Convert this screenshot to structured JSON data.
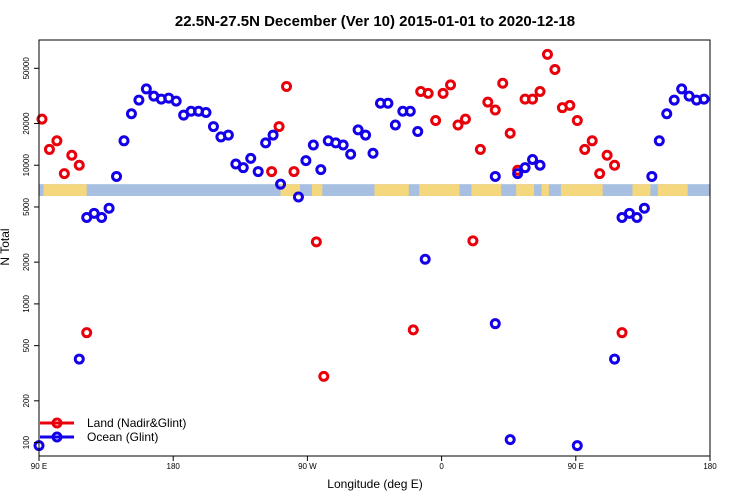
{
  "chart_data": {
    "type": "scatter",
    "title": "22.5N-27.5N December (Ver 10)   2015-01-01 to 2020-12-18",
    "xlabel": "Longitude (deg E)",
    "ylabel": "N Total",
    "y_scale": "log",
    "ylim": [
      80,
      80000
    ],
    "xlim_deg_east_unwrapped": [
      90,
      540
    ],
    "x_ticks": [
      {
        "value": 90,
        "label": "90 E"
      },
      {
        "value": 180,
        "label": "180"
      },
      {
        "value": 270,
        "label": "90 W"
      },
      {
        "value": 360,
        "label": "0"
      },
      {
        "value": 450,
        "label": "90 E"
      },
      {
        "value": 540,
        "label": "180"
      }
    ],
    "y_ticks": [
      {
        "value": 100,
        "label": "100"
      },
      {
        "value": 200,
        "label": "200"
      },
      {
        "value": 500,
        "label": "500"
      },
      {
        "value": 1000,
        "label": "1000"
      },
      {
        "value": 2000,
        "label": "2000"
      },
      {
        "value": 5000,
        "label": "5000"
      },
      {
        "value": 10000,
        "label": "10000"
      },
      {
        "value": 20000,
        "label": "20000"
      },
      {
        "value": 50000,
        "label": "50000"
      }
    ],
    "legend": {
      "position": "bottom-left"
    },
    "map_strip": {
      "y_top": 7300,
      "y_bottom": 6000,
      "ocean_color": "#a7bfe0",
      "land_color": "#f5d77e",
      "land_ranges_deg_east": [
        [
          93,
          122
        ],
        [
          252,
          265
        ],
        [
          273,
          280
        ],
        [
          315,
          338
        ],
        [
          345,
          372
        ],
        [
          380,
          400
        ],
        [
          410,
          422
        ],
        [
          427,
          432
        ],
        [
          440,
          468
        ],
        [
          488,
          500
        ],
        [
          505,
          525
        ]
      ]
    },
    "series": [
      {
        "name": "Land (Nadir&Glint)",
        "color": "#e8000b",
        "points": [
          {
            "x": 92,
            "y": 21500
          },
          {
            "x": 97,
            "y": 13000
          },
          {
            "x": 102,
            "y": 15000
          },
          {
            "x": 107,
            "y": 8700
          },
          {
            "x": 112,
            "y": 11800
          },
          {
            "x": 117,
            "y": 10000
          },
          {
            "x": 122,
            "y": 620
          },
          {
            "x": 246,
            "y": 9000
          },
          {
            "x": 251,
            "y": 19000
          },
          {
            "x": 256,
            "y": 37000
          },
          {
            "x": 261,
            "y": 9000
          },
          {
            "x": 276,
            "y": 2800
          },
          {
            "x": 281,
            "y": 300
          },
          {
            "x": 341,
            "y": 650
          },
          {
            "x": 346,
            "y": 34000
          },
          {
            "x": 351,
            "y": 33000
          },
          {
            "x": 356,
            "y": 21000
          },
          {
            "x": 361,
            "y": 33000
          },
          {
            "x": 366,
            "y": 38000
          },
          {
            "x": 371,
            "y": 19500
          },
          {
            "x": 376,
            "y": 21500
          },
          {
            "x": 381,
            "y": 2850
          },
          {
            "x": 386,
            "y": 13000
          },
          {
            "x": 391,
            "y": 28500
          },
          {
            "x": 396,
            "y": 25000
          },
          {
            "x": 401,
            "y": 39000
          },
          {
            "x": 406,
            "y": 17000
          },
          {
            "x": 411,
            "y": 9200
          },
          {
            "x": 416,
            "y": 30000
          },
          {
            "x": 421,
            "y": 30000
          },
          {
            "x": 426,
            "y": 34000
          },
          {
            "x": 431,
            "y": 63000
          },
          {
            "x": 436,
            "y": 49000
          },
          {
            "x": 441,
            "y": 26000
          },
          {
            "x": 446,
            "y": 27000
          },
          {
            "x": 451,
            "y": 21000
          },
          {
            "x": 456,
            "y": 13000
          },
          {
            "x": 461,
            "y": 15000
          },
          {
            "x": 466,
            "y": 8700
          },
          {
            "x": 471,
            "y": 11800
          },
          {
            "x": 476,
            "y": 10000
          },
          {
            "x": 481,
            "y": 620
          }
        ]
      },
      {
        "name": "Ocean (Glint)",
        "color": "#1300e8",
        "points": [
          {
            "x": 90,
            "y": 95
          },
          {
            "x": 117,
            "y": 400
          },
          {
            "x": 122,
            "y": 4200
          },
          {
            "x": 127,
            "y": 4500
          },
          {
            "x": 132,
            "y": 4200
          },
          {
            "x": 137,
            "y": 4900
          },
          {
            "x": 142,
            "y": 8300
          },
          {
            "x": 147,
            "y": 15000
          },
          {
            "x": 152,
            "y": 23500
          },
          {
            "x": 157,
            "y": 29500
          },
          {
            "x": 162,
            "y": 35500
          },
          {
            "x": 167,
            "y": 31500
          },
          {
            "x": 172,
            "y": 30000
          },
          {
            "x": 177,
            "y": 30500
          },
          {
            "x": 182,
            "y": 29000
          },
          {
            "x": 187,
            "y": 23000
          },
          {
            "x": 192,
            "y": 24500
          },
          {
            "x": 197,
            "y": 24500
          },
          {
            "x": 202,
            "y": 24000
          },
          {
            "x": 207,
            "y": 19000
          },
          {
            "x": 212,
            "y": 16000
          },
          {
            "x": 217,
            "y": 16500
          },
          {
            "x": 222,
            "y": 10200
          },
          {
            "x": 227,
            "y": 9600
          },
          {
            "x": 232,
            "y": 11200
          },
          {
            "x": 237,
            "y": 9000
          },
          {
            "x": 242,
            "y": 14500
          },
          {
            "x": 247,
            "y": 16500
          },
          {
            "x": 252,
            "y": 7300
          },
          {
            "x": 264,
            "y": 5900
          },
          {
            "x": 269,
            "y": 10800
          },
          {
            "x": 274,
            "y": 14000
          },
          {
            "x": 279,
            "y": 9300
          },
          {
            "x": 284,
            "y": 15000
          },
          {
            "x": 289,
            "y": 14500
          },
          {
            "x": 294,
            "y": 14000
          },
          {
            "x": 299,
            "y": 12000
          },
          {
            "x": 304,
            "y": 18000
          },
          {
            "x": 309,
            "y": 16500
          },
          {
            "x": 314,
            "y": 12200
          },
          {
            "x": 319,
            "y": 28000
          },
          {
            "x": 324,
            "y": 28000
          },
          {
            "x": 329,
            "y": 19500
          },
          {
            "x": 334,
            "y": 24500
          },
          {
            "x": 339,
            "y": 24500
          },
          {
            "x": 344,
            "y": 17500
          },
          {
            "x": 349,
            "y": 2100
          },
          {
            "x": 396,
            "y": 8300
          },
          {
            "x": 411,
            "y": 8700
          },
          {
            "x": 416,
            "y": 9600
          },
          {
            "x": 421,
            "y": 11000
          },
          {
            "x": 426,
            "y": 10000
          },
          {
            "x": 396,
            "y": 720
          },
          {
            "x": 406,
            "y": 105
          },
          {
            "x": 451,
            "y": 95
          },
          {
            "x": 476,
            "y": 400
          },
          {
            "x": 481,
            "y": 4200
          },
          {
            "x": 486,
            "y": 4500
          },
          {
            "x": 491,
            "y": 4200
          },
          {
            "x": 496,
            "y": 4900
          },
          {
            "x": 501,
            "y": 8300
          },
          {
            "x": 506,
            "y": 15000
          },
          {
            "x": 511,
            "y": 23500
          },
          {
            "x": 516,
            "y": 29500
          },
          {
            "x": 521,
            "y": 35500
          },
          {
            "x": 526,
            "y": 31500
          },
          {
            "x": 531,
            "y": 29500
          },
          {
            "x": 536,
            "y": 30000
          }
        ]
      }
    ]
  }
}
